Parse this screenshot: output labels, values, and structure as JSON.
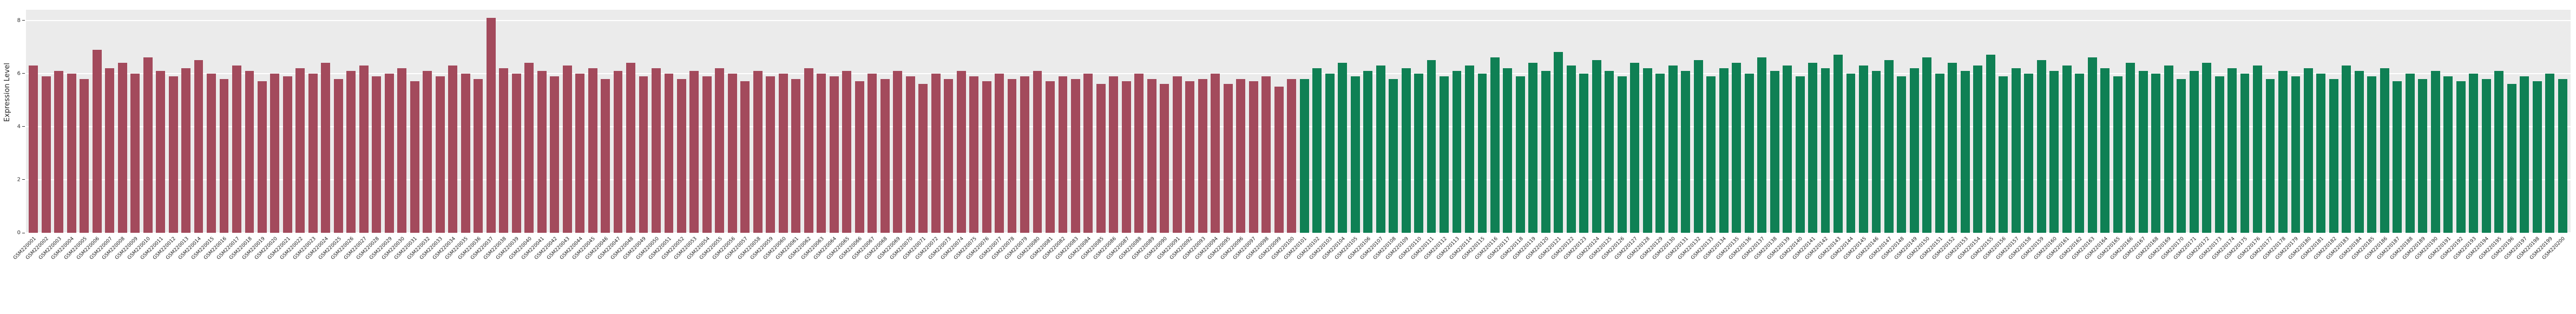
{
  "chart_data": {
    "type": "bar",
    "title": "",
    "xlabel": "",
    "ylabel": "Expression Level",
    "ylim": [
      0,
      8.4
    ],
    "yticks": [
      0,
      2,
      4,
      6,
      8
    ],
    "grid": "horizontal-white-on-gray",
    "legend": "none",
    "groups": [
      {
        "name": "group-1-red-samples",
        "color": "#a34a5c",
        "categories": [
          "GSM220001",
          "GSM220002",
          "GSM220003",
          "GSM220004",
          "GSM220005",
          "GSM220006",
          "GSM220007",
          "GSM220008",
          "GSM220009",
          "GSM220010",
          "GSM220011",
          "GSM220012",
          "GSM220013",
          "GSM220014",
          "GSM220015",
          "GSM220016",
          "GSM220017",
          "GSM220018",
          "GSM220019",
          "GSM220020",
          "GSM220021",
          "GSM220022",
          "GSM220023",
          "GSM220024",
          "GSM220025",
          "GSM220026",
          "GSM220027",
          "GSM220028",
          "GSM220029",
          "GSM220030",
          "GSM220031",
          "GSM220032",
          "GSM220033",
          "GSM220034",
          "GSM220035",
          "GSM220036",
          "GSM220037",
          "GSM220038",
          "GSM220039",
          "GSM220040",
          "GSM220041",
          "GSM220042",
          "GSM220043",
          "GSM220044",
          "GSM220045",
          "GSM220046",
          "GSM220047",
          "GSM220048",
          "GSM220049",
          "GSM220050",
          "GSM220051",
          "GSM220052",
          "GSM220053",
          "GSM220054",
          "GSM220055",
          "GSM220056",
          "GSM220057",
          "GSM220058",
          "GSM220059",
          "GSM220060",
          "GSM220061",
          "GSM220062",
          "GSM220063",
          "GSM220064",
          "GSM220065",
          "GSM220066",
          "GSM220067",
          "GSM220068",
          "GSM220069",
          "GSM220070",
          "GSM220071",
          "GSM220072",
          "GSM220073",
          "GSM220074",
          "GSM220075",
          "GSM220076",
          "GSM220077",
          "GSM220078",
          "GSM220079",
          "GSM220080",
          "GSM220081",
          "GSM220082",
          "GSM220083",
          "GSM220084",
          "GSM220085",
          "GSM220086",
          "GSM220087",
          "GSM220088",
          "GSM220089",
          "GSM220090",
          "GSM220091",
          "GSM220092",
          "GSM220093",
          "GSM220094",
          "GSM220095",
          "GSM220096",
          "GSM220097",
          "GSM220098",
          "GSM220099",
          "GSM220100"
        ],
        "values": [
          6.3,
          5.9,
          6.1,
          6.0,
          5.8,
          6.9,
          6.2,
          6.4,
          6.0,
          6.6,
          6.1,
          5.9,
          6.2,
          6.5,
          6.0,
          5.8,
          6.3,
          6.1,
          5.7,
          6.0,
          5.9,
          6.2,
          6.0,
          6.4,
          5.8,
          6.1,
          6.3,
          5.9,
          6.0,
          6.2,
          5.7,
          6.1,
          5.9,
          6.3,
          6.0,
          5.8,
          8.1,
          6.2,
          6.0,
          6.4,
          6.1,
          5.9,
          6.3,
          6.0,
          6.2,
          5.8,
          6.1,
          6.4,
          5.9,
          6.2,
          6.0,
          5.8,
          6.1,
          5.9,
          6.2,
          6.0,
          5.7,
          6.1,
          5.9,
          6.0,
          5.8,
          6.2,
          6.0,
          5.9,
          6.1,
          5.7,
          6.0,
          5.8,
          6.1,
          5.9,
          5.6,
          6.0,
          5.8,
          6.1,
          5.9,
          5.7,
          6.0,
          5.8,
          5.9,
          6.1,
          5.7,
          5.9,
          5.8,
          6.0,
          5.6,
          5.9,
          5.7,
          6.0,
          5.8,
          5.6,
          5.9,
          5.7,
          5.8,
          6.0,
          5.6,
          5.8,
          5.7,
          5.9,
          5.5,
          5.8
        ]
      },
      {
        "name": "group-2-green-samples",
        "color": "#0f8054",
        "categories": [
          "GSM220101",
          "GSM220102",
          "GSM220103",
          "GSM220104",
          "GSM220105",
          "GSM220106",
          "GSM220107",
          "GSM220108",
          "GSM220109",
          "GSM220110",
          "GSM220111",
          "GSM220112",
          "GSM220113",
          "GSM220114",
          "GSM220115",
          "GSM220116",
          "GSM220117",
          "GSM220118",
          "GSM220119",
          "GSM220120",
          "GSM220121",
          "GSM220122",
          "GSM220123",
          "GSM220124",
          "GSM220125",
          "GSM220126",
          "GSM220127",
          "GSM220128",
          "GSM220129",
          "GSM220130",
          "GSM220131",
          "GSM220132",
          "GSM220133",
          "GSM220134",
          "GSM220135",
          "GSM220136",
          "GSM220137",
          "GSM220138",
          "GSM220139",
          "GSM220140",
          "GSM220141",
          "GSM220142",
          "GSM220143",
          "GSM220144",
          "GSM220145",
          "GSM220146",
          "GSM220147",
          "GSM220148",
          "GSM220149",
          "GSM220150",
          "GSM220151",
          "GSM220152",
          "GSM220153",
          "GSM220154",
          "GSM220155",
          "GSM220156",
          "GSM220157",
          "GSM220158",
          "GSM220159",
          "GSM220160",
          "GSM220161",
          "GSM220162",
          "GSM220163",
          "GSM220164",
          "GSM220165",
          "GSM220166",
          "GSM220167",
          "GSM220168",
          "GSM220169",
          "GSM220170",
          "GSM220171",
          "GSM220172",
          "GSM220173",
          "GSM220174",
          "GSM220175",
          "GSM220176",
          "GSM220177",
          "GSM220178",
          "GSM220179",
          "GSM220180",
          "GSM220181",
          "GSM220182",
          "GSM220183",
          "GSM220184",
          "GSM220185",
          "GSM220186",
          "GSM220187",
          "GSM220188",
          "GSM220189",
          "GSM220190",
          "GSM220191",
          "GSM220192",
          "GSM220193",
          "GSM220194",
          "GSM220195",
          "GSM220196",
          "GSM220197",
          "GSM220198",
          "GSM220199",
          "GSM220200"
        ],
        "values": [
          5.8,
          6.2,
          6.0,
          6.4,
          5.9,
          6.1,
          6.3,
          5.8,
          6.2,
          6.0,
          6.5,
          5.9,
          6.1,
          6.3,
          6.0,
          6.6,
          6.2,
          5.9,
          6.4,
          6.1,
          6.8,
          6.3,
          6.0,
          6.5,
          6.1,
          5.9,
          6.4,
          6.2,
          6.0,
          6.3,
          6.1,
          6.5,
          5.9,
          6.2,
          6.4,
          6.0,
          6.6,
          6.1,
          6.3,
          5.9,
          6.4,
          6.2,
          6.7,
          6.0,
          6.3,
          6.1,
          6.5,
          5.9,
          6.2,
          6.6,
          6.0,
          6.4,
          6.1,
          6.3,
          6.7,
          5.9,
          6.2,
          6.0,
          6.5,
          6.1,
          6.3,
          6.0,
          6.6,
          6.2,
          5.9,
          6.4,
          6.1,
          6.0,
          6.3,
          5.8,
          6.1,
          6.4,
          5.9,
          6.2,
          6.0,
          6.3,
          5.8,
          6.1,
          5.9,
          6.2,
          6.0,
          5.8,
          6.3,
          6.1,
          5.9,
          6.2,
          5.7,
          6.0,
          5.8,
          6.1,
          5.9,
          5.7,
          6.0,
          5.8,
          6.1,
          5.6,
          5.9,
          5.7,
          6.0,
          5.8
        ]
      }
    ]
  },
  "axis": {
    "ylabel": "Expression Level"
  }
}
